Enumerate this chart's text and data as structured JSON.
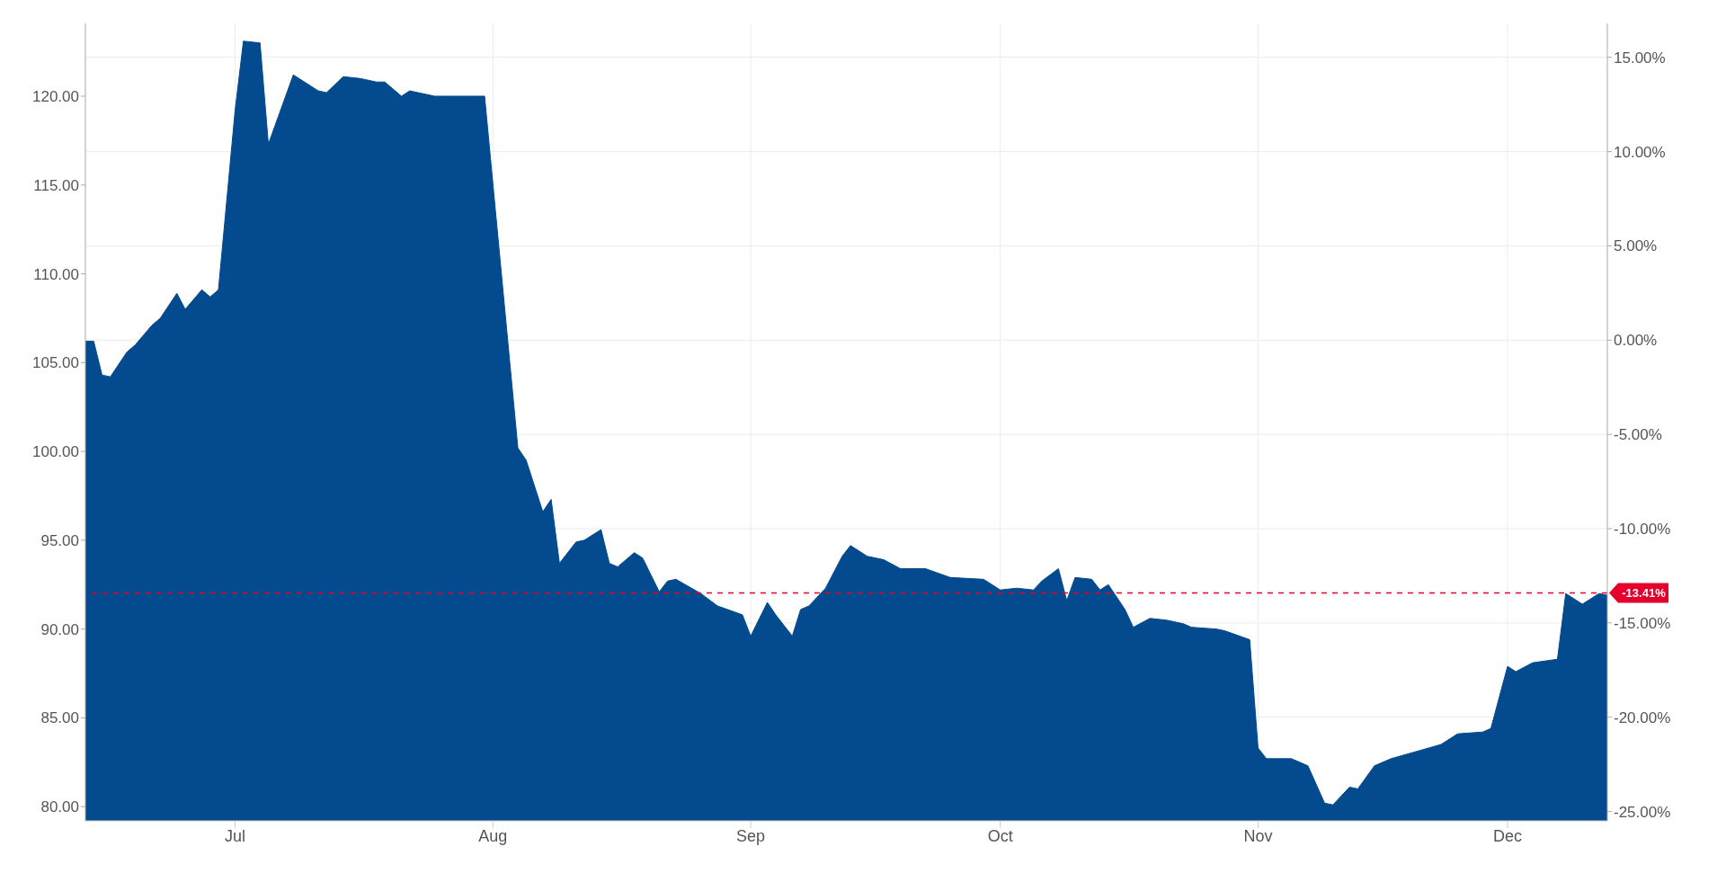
{
  "chart_data": {
    "type": "area",
    "x": [
      "--06-13",
      "--06-14",
      "--06-15",
      "--06-16",
      "--06-18",
      "--06-19",
      "--06-21",
      "--06-22",
      "--06-24",
      "--06-25",
      "--06-27",
      "--06-28",
      "--06-29",
      "--07-01",
      "--07-02",
      "--07-04",
      "--07-05",
      "--07-08",
      "--07-11",
      "--07-12",
      "--07-14",
      "--07-16",
      "--07-18",
      "--07-19",
      "--07-21",
      "--07-22",
      "--07-25",
      "--07-28",
      "--07-29",
      "--07-31",
      "--08-04",
      "--08-05",
      "--08-07",
      "--08-08",
      "--08-09",
      "--08-11",
      "--08-12",
      "--08-14",
      "--08-15",
      "--08-16",
      "--08-18",
      "--08-19",
      "--08-21",
      "--08-22",
      "--08-23",
      "--08-26",
      "--08-28",
      "--08-31",
      "--09-01",
      "--09-03",
      "--09-04",
      "--09-06",
      "--09-07",
      "--09-08",
      "--09-10",
      "--09-12",
      "--09-13",
      "--09-15",
      "--09-17",
      "--09-19",
      "--09-22",
      "--09-25",
      "--09-29",
      "--10-01",
      "--10-03",
      "--10-05",
      "--10-06",
      "--10-08",
      "--10-09",
      "--10-10",
      "--10-12",
      "--10-13",
      "--10-14",
      "--10-16",
      "--10-17",
      "--10-19",
      "--10-21",
      "--10-23",
      "--10-24",
      "--10-27",
      "--10-28",
      "--10-31",
      "--11-01",
      "--11-02",
      "--11-05",
      "--11-07",
      "--11-09",
      "--11-10",
      "--11-12",
      "--11-13",
      "--11-15",
      "--11-17",
      "--11-20",
      "--11-23",
      "--11-25",
      "--11-28",
      "--11-29",
      "--12-01",
      "--12-02",
      "--12-04",
      "--12-07",
      "--12-08",
      "--12-10",
      "--12-12",
      "--12-13"
    ],
    "series": [
      {
        "color": "#034a8f",
        "values": [
          106.2,
          106.2,
          104.3,
          104.2,
          105.6,
          106.0,
          107.1,
          107.5,
          108.9,
          108.0,
          109.1,
          108.7,
          109.1,
          119.2,
          123.1,
          123.0,
          117.3,
          121.2,
          120.3,
          120.2,
          121.1,
          121.0,
          120.8,
          120.8,
          120.0,
          120.3,
          120.0,
          120.0,
          120.0,
          120.0,
          100.2,
          99.5,
          96.6,
          97.3,
          93.7,
          94.9,
          95.0,
          95.6,
          93.7,
          93.5,
          94.3,
          94.0,
          92.1,
          92.7,
          92.8,
          92.0,
          91.3,
          90.8,
          89.6,
          91.5,
          90.8,
          89.6,
          91.1,
          91.3,
          92.3,
          94.1,
          94.7,
          94.1,
          93.9,
          93.4,
          93.4,
          92.9,
          92.8,
          92.2,
          92.3,
          92.2,
          92.7,
          93.4,
          91.6,
          92.9,
          92.8,
          92.2,
          92.5,
          91.1,
          90.1,
          90.6,
          90.5,
          90.3,
          90.1,
          90.0,
          89.9,
          89.4,
          83.3,
          82.7,
          82.7,
          82.3,
          80.2,
          80.1,
          81.1,
          81.0,
          82.3,
          82.7,
          83.1,
          83.5,
          84.1,
          84.2,
          84.4,
          87.9,
          87.6,
          88.1,
          88.3,
          92.0,
          91.4,
          92.0,
          91.9
        ]
      }
    ],
    "xlim": [
      "--06-13",
      "--12-13"
    ],
    "xticks": [
      {
        "value": "--07-01",
        "label": "Jul"
      },
      {
        "value": "--08-01",
        "label": "Aug"
      },
      {
        "value": "--09-01",
        "label": "Sep"
      },
      {
        "value": "--10-01",
        "label": "Oct"
      },
      {
        "value": "--11-01",
        "label": "Nov"
      },
      {
        "value": "--12-01",
        "label": "Dec"
      }
    ],
    "ylim": [
      79.2,
      124.1
    ],
    "yticks": [
      {
        "value": 80,
        "label": "80.00"
      },
      {
        "value": 85,
        "label": "85.00"
      },
      {
        "value": 90,
        "label": "90.00"
      },
      {
        "value": 95,
        "label": "95.00"
      },
      {
        "value": 100,
        "label": "100.00"
      },
      {
        "value": 105,
        "label": "105.00"
      },
      {
        "value": 110,
        "label": "110.00"
      },
      {
        "value": 115,
        "label": "115.00"
      },
      {
        "value": 120,
        "label": "120.00"
      }
    ],
    "y2lim": [
      -25.5,
      16.8
    ],
    "y2ticks": [
      {
        "value": -25,
        "label": "-25.00%"
      },
      {
        "value": -20,
        "label": "-20.00%"
      },
      {
        "value": -15,
        "label": "-15.00%"
      },
      {
        "value": -10,
        "label": "-10.00%"
      },
      {
        "value": -5,
        "label": "-5.00%"
      },
      {
        "value": 0,
        "label": "0.00%"
      },
      {
        "value": 5,
        "label": "5.00%"
      },
      {
        "value": 10,
        "label": "10.00%"
      },
      {
        "value": 15,
        "label": "15.00%"
      }
    ],
    "ref_lines": [
      {
        "axis": "y2",
        "value": -13.41,
        "label": "-13.41%",
        "color": "#e4002b",
        "line_style": "dashed"
      }
    ],
    "grid": true
  }
}
